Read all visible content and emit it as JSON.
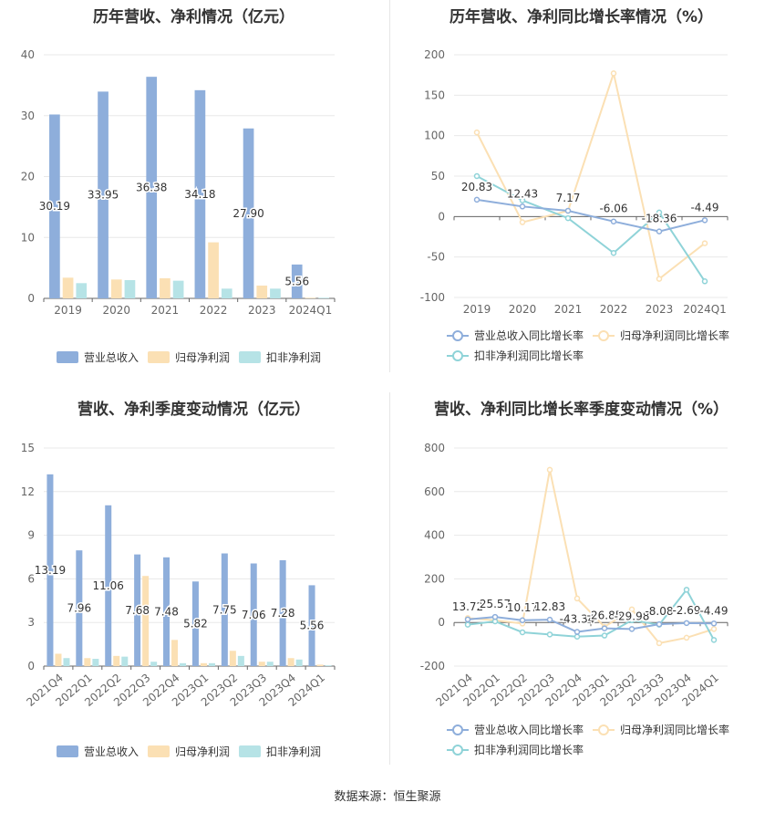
{
  "colors": {
    "revenue": "#8eaedb",
    "parent_profit": "#fbe0b4",
    "deducted_profit": "#b6e3e6",
    "revenue_line": "#8eaedb",
    "parent_line": "#fbe0b4",
    "deducted_line": "#8fd3d8"
  },
  "source": "数据来源：恒生聚源",
  "chart_data": [
    {
      "type": "bar",
      "title": "历年营收、净利情况（亿元）",
      "categories": [
        "2019",
        "2020",
        "2021",
        "2022",
        "2023",
        "2024Q1"
      ],
      "ylim": [
        0,
        40
      ],
      "yticks": [
        0,
        10,
        20,
        30,
        40
      ],
      "series": [
        {
          "name": "营业总收入",
          "values": [
            30.19,
            33.95,
            36.38,
            34.18,
            27.9,
            5.56
          ],
          "labels": [
            "30.19",
            "33.95",
            "36.38",
            "34.18",
            "27.90",
            "5.56"
          ]
        },
        {
          "name": "归母净利润",
          "values": [
            3.4,
            3.1,
            3.3,
            9.2,
            2.1,
            0.1
          ]
        },
        {
          "name": "扣非净利润",
          "values": [
            2.5,
            3.0,
            2.9,
            1.6,
            1.6,
            0.1
          ]
        }
      ],
      "legend": "bottom",
      "grid": true
    },
    {
      "type": "line",
      "title": "历年营收、净利同比增长率情况（%）",
      "categories": [
        "2019",
        "2020",
        "2021",
        "2022",
        "2023",
        "2024Q1"
      ],
      "ylim": [
        -100,
        200
      ],
      "yticks": [
        -100,
        -50,
        0,
        50,
        100,
        150,
        200
      ],
      "series": [
        {
          "name": "营业总收入同比增长率",
          "values": [
            20.83,
            12.43,
            7.17,
            -6.06,
            -18.36,
            -4.49
          ],
          "labels": [
            "20.83",
            "12.43",
            "7.17",
            "-6.06",
            "-18.36",
            "-4.49"
          ]
        },
        {
          "name": "归母净利润同比增长率",
          "values": [
            104,
            -7,
            7,
            177,
            -77,
            -33
          ]
        },
        {
          "name": "扣非净利润同比增长率",
          "values": [
            50,
            20,
            -2,
            -45,
            5,
            -80
          ]
        }
      ],
      "legend": "bottom",
      "grid": true
    },
    {
      "type": "bar",
      "title": "营收、净利季度变动情况（亿元）",
      "categories": [
        "2021Q4",
        "2022Q1",
        "2022Q2",
        "2022Q3",
        "2022Q4",
        "2023Q1",
        "2023Q2",
        "2023Q3",
        "2023Q4",
        "2024Q1"
      ],
      "ylim": [
        0,
        15
      ],
      "yticks": [
        0,
        3,
        6,
        9,
        12,
        15
      ],
      "series": [
        {
          "name": "营业总收入",
          "values": [
            13.19,
            7.96,
            11.06,
            7.68,
            7.48,
            5.82,
            7.75,
            7.06,
            7.28,
            5.56
          ],
          "labels": [
            "13.19",
            "7.96",
            "11.06",
            "7.68",
            "7.48",
            "5.82",
            "7.75",
            "7.06",
            "7.28",
            "5.56"
          ]
        },
        {
          "name": "归母净利润",
          "values": [
            0.85,
            0.55,
            0.7,
            6.2,
            1.8,
            0.2,
            1.05,
            0.3,
            0.55,
            0.1
          ]
        },
        {
          "name": "扣非净利润",
          "values": [
            0.55,
            0.5,
            0.65,
            0.3,
            0.2,
            0.2,
            0.7,
            0.3,
            0.45,
            0.05
          ]
        }
      ],
      "legend": "bottom",
      "grid": true
    },
    {
      "type": "line",
      "title": "营收、净利同比增长率季度变动情况（%）",
      "categories": [
        "2021Q4",
        "2022Q1",
        "2022Q2",
        "2022Q3",
        "2022Q4",
        "2023Q1",
        "2023Q2",
        "2023Q3",
        "2023Q4",
        "2024Q1"
      ],
      "ylim": [
        -200,
        800
      ],
      "yticks": [
        -200,
        0,
        200,
        400,
        600,
        800
      ],
      "series": [
        {
          "name": "营业总收入同比增长率",
          "values": [
            13.72,
            25.57,
            10.17,
            12.83,
            -43.34,
            -26.85,
            -29.98,
            -8.08,
            -2.69,
            -4.49
          ],
          "labels": [
            "13.72",
            "25.57",
            "10.17",
            "12.83",
            "-43.34",
            "-26.85",
            "-29.98",
            "-8.08",
            "-2.69",
            "-4.49"
          ]
        },
        {
          "name": "归母净利润同比增长率",
          "values": [
            20,
            10,
            -5,
            700,
            110,
            -20,
            60,
            -95,
            -70,
            -30
          ]
        },
        {
          "name": "扣非净利润同比增长率",
          "values": [
            -10,
            5,
            -45,
            -55,
            -65,
            -60,
            10,
            -10,
            150,
            -80
          ]
        }
      ],
      "legend": "bottom",
      "grid": true
    }
  ]
}
